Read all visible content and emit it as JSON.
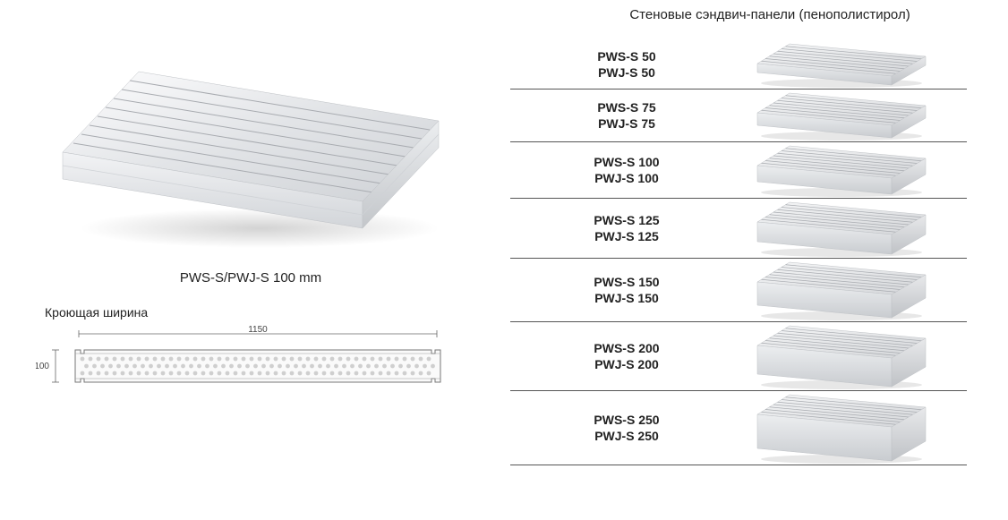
{
  "main": {
    "caption": "PWS-S/PWJ-S 100 mm",
    "section_label": "Кроющая ширина",
    "width_dim": "1150",
    "height_dim": "100"
  },
  "right": {
    "title": "Стеновые сэндвич-панели (пенополистирол)"
  },
  "variants": [
    {
      "l1": "PWS-S 50",
      "l2": "PWJ-S 50",
      "thk": 10
    },
    {
      "l1": "PWS-S 75",
      "l2": "PWJ-S 75",
      "thk": 14
    },
    {
      "l1": "PWS-S 100",
      "l2": "PWJ-S 100",
      "thk": 18
    },
    {
      "l1": "PWS-S 125",
      "l2": "PWJ-S 125",
      "thk": 22
    },
    {
      "l1": "PWS-S 150",
      "l2": "PWJ-S 150",
      "thk": 26
    },
    {
      "l1": "PWS-S 200",
      "l2": "PWJ-S 200",
      "thk": 32
    },
    {
      "l1": "PWS-S 250",
      "l2": "PWJ-S 250",
      "thk": 38
    }
  ],
  "style": {
    "panel_top_light": "#f5f6f7",
    "panel_top_dark": "#d4d6d9",
    "panel_groove": "#a8abb0",
    "panel_side_light": "#e8e9eb",
    "panel_side_dark": "#bfc2c6",
    "panel_front_light": "#eceef0",
    "panel_front_dark": "#c9ccd0",
    "shadow": "#d0d0d0",
    "section_outline": "#888888",
    "section_fill": "#fafafa",
    "dim_line": "#666666",
    "text_color": "#222222",
    "border_color": "#555555",
    "font_size_title": 15,
    "font_size_label": 14,
    "font_size_dim": 10,
    "background": "#ffffff",
    "groove_count": 8,
    "thumb_width": 200,
    "thumb_base_height": 44
  }
}
